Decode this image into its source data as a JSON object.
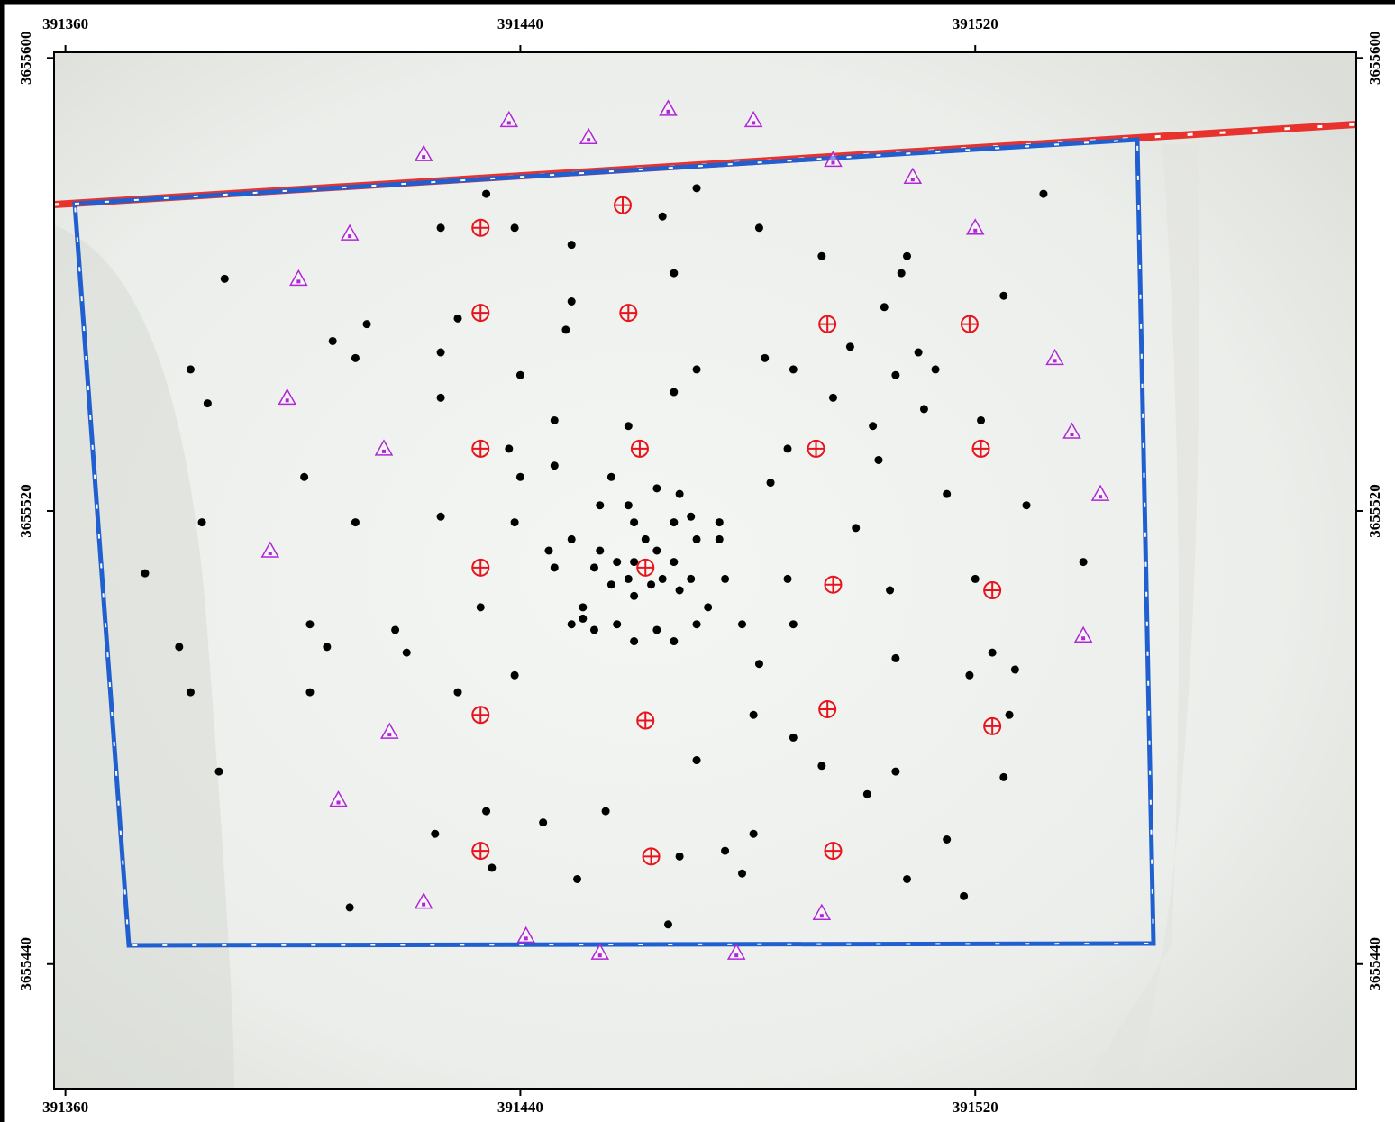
{
  "chart_data": {
    "type": "scatter",
    "xlim": [
      391358,
      391587
    ],
    "ylim": [
      3655418,
      3655601
    ],
    "xticks": [
      391360,
      391440,
      391520
    ],
    "yticks": [
      3655440,
      3655520,
      3655600
    ],
    "series": [
      {
        "marker": "dot",
        "color": "#000000",
        "x": [
          391434,
          391471,
          391532,
          391426,
          391439,
          391465,
          391482,
          391449,
          391508,
          391493,
          391388,
          391467,
          391507,
          391525,
          391449,
          391429,
          391413,
          391504,
          391448,
          391407,
          391498,
          391411,
          391426,
          391483,
          391488,
          391510,
          391382,
          391440,
          391471,
          391506,
          391513,
          391385,
          391426,
          391467,
          391495,
          391511,
          391446,
          391459,
          391502,
          391521,
          391438,
          391446,
          391487,
          391503,
          391402,
          391440,
          391484,
          391515,
          391529,
          391384,
          391411,
          391426,
          391439,
          391499,
          391539,
          391374,
          391433,
          391487,
          391505,
          391520,
          391403,
          391418,
          391380,
          391406,
          391420,
          391488,
          391506,
          391523,
          391382,
          391403,
          391429,
          391439,
          391482,
          391519,
          391527,
          391481,
          391488,
          391526,
          391387,
          391471,
          391493,
          391506,
          391525,
          391501,
          391434,
          391455,
          391425,
          391444,
          391481,
          391515,
          391476,
          391468,
          391435,
          391450,
          391479,
          391508,
          391518,
          391410,
          391466,
          391460,
          391459,
          391463,
          391457,
          391464,
          391460,
          391465,
          391456,
          391462,
          391467,
          391454,
          391468,
          391457,
          391464,
          391470,
          391453,
          391460,
          391467,
          391471,
          391449,
          391451,
          391473,
          391459,
          391468,
          391454,
          391446,
          391476,
          391451,
          391479,
          391464,
          391445,
          391475,
          391470,
          391453,
          391460,
          391467,
          391456,
          391471,
          391475,
          391449
        ],
        "y": [
          3655576,
          3655577,
          3655576,
          3655570,
          3655570,
          3655572,
          3655570,
          3655567,
          3655565,
          3655565,
          3655561,
          3655562,
          3655562,
          3655558,
          3655557,
          3655554,
          3655553,
          3655556,
          3655552,
          3655550,
          3655549,
          3655547,
          3655548,
          3655547,
          3655545,
          3655548,
          3655545,
          3655544,
          3655545,
          3655544,
          3655545,
          3655539,
          3655540,
          3655541,
          3655540,
          3655538,
          3655536,
          3655535,
          3655535,
          3655536,
          3655531,
          3655528,
          3655531,
          3655529,
          3655526,
          3655526,
          3655525,
          3655523,
          3655521,
          3655518,
          3655518,
          3655519,
          3655518,
          3655517,
          3655511,
          3655509,
          3655503,
          3655508,
          3655506,
          3655508,
          3655500,
          3655499,
          3655496,
          3655496,
          3655495,
          3655500,
          3655494,
          3655495,
          3655488,
          3655488,
          3655488,
          3655491,
          3655493,
          3655491,
          3655492,
          3655484,
          3655480,
          3655484,
          3655474,
          3655476,
          3655475,
          3655474,
          3655473,
          3655470,
          3655467,
          3655467,
          3655463,
          3655465,
          3655463,
          3655462,
          3655460,
          3655459,
          3655457,
          3655455,
          3655456,
          3655455,
          3655452,
          3655450,
          3655447,
          3655511,
          3655508,
          3655507,
          3655511,
          3655513,
          3655505,
          3655508,
          3655507,
          3655515,
          3655511,
          3655513,
          3655506,
          3655500,
          3655499,
          3655508,
          3655510,
          3655518,
          3655518,
          3655515,
          3655515,
          3655503,
          3655503,
          3655521,
          3655523,
          3655521,
          3655510,
          3655508,
          3655501,
          3655500,
          3655524,
          3655513,
          3655515,
          3655519,
          3655499,
          3655497,
          3655497,
          3655526,
          3655500,
          3655518,
          3655500
        ]
      },
      {
        "marker": "target",
        "color": "#e8141c",
        "x": [
          391433,
          391458,
          391433,
          391459,
          391494,
          391519,
          391433,
          391461,
          391492,
          391521,
          391433,
          391462,
          391495,
          391523,
          391433,
          391462,
          391494,
          391523,
          391433,
          391463,
          391495
        ],
        "y": [
          3655570,
          3655574,
          3655555,
          3655555,
          3655553,
          3655553,
          3655531,
          3655531,
          3655531,
          3655531,
          3655510,
          3655510,
          3655507,
          3655506,
          3655484,
          3655483,
          3655485,
          3655482,
          3655460,
          3655459,
          3655460
        ]
      },
      {
        "marker": "triangle",
        "color": "#b026d8",
        "x": [
          391423,
          391438,
          391452,
          391466,
          391481,
          391495,
          391509,
          391520,
          391410,
          391401,
          391399,
          391416,
          391534,
          391537,
          391542,
          391396,
          391539,
          391417,
          391408,
          391423,
          391441,
          391454,
          391478,
          391493
        ],
        "y": [
          3655583,
          3655589,
          3655586,
          3655591,
          3655589,
          3655582,
          3655579,
          3655570,
          3655569,
          3655561,
          3655540,
          3655531,
          3655547,
          3655534,
          3655523,
          3655513,
          3655498,
          3655481,
          3655469,
          3655451,
          3655445,
          3655442,
          3655442,
          3655449
        ]
      }
    ]
  }
}
